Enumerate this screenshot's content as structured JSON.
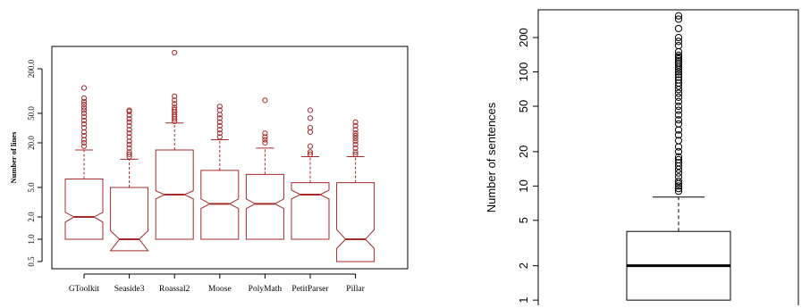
{
  "chart_data": [
    {
      "type": "box",
      "title": "",
      "xlabel": "",
      "ylabel": "Number of lines",
      "yscale": "log",
      "ylim": [
        0.4,
        400
      ],
      "yticks": [
        0.5,
        1.0,
        2.0,
        5.0,
        20.0,
        50.0,
        200.0
      ],
      "ytick_labels": [
        "0.5",
        "1.0",
        "2.0",
        "5.0",
        "20.0",
        "50.0",
        "200.0"
      ],
      "notched": true,
      "color": "#a52a2a",
      "categories": [
        "GToolkit",
        "Seaside3",
        "Roassal2",
        "Moose",
        "PolyMath",
        "PetitParser",
        "Pillar"
      ],
      "series": [
        {
          "category": "GToolkit",
          "min": 1,
          "q1": 1,
          "median": 2,
          "q3": 6.5,
          "whisker_high": 16,
          "notch": [
            1.7,
            2.3
          ],
          "outliers": [
            18,
            20,
            22,
            25,
            28,
            32,
            36,
            40,
            45,
            50,
            55,
            60,
            66,
            72,
            80,
            110
          ]
        },
        {
          "category": "Seaside3",
          "min": 0.7,
          "q1": 0.7,
          "median": 1,
          "q3": 5,
          "whisker_high": 12,
          "notch": [
            0.7,
            1.3
          ],
          "outliers": [
            13,
            14,
            15,
            17,
            19,
            21,
            24,
            27,
            30,
            34,
            38,
            42,
            47,
            53,
            55
          ]
        },
        {
          "category": "Roassal2",
          "min": 1,
          "q1": 1,
          "median": 4,
          "q3": 16,
          "whisker_high": 37,
          "notch": [
            3.5,
            4.5
          ],
          "outliers": [
            39,
            42,
            45,
            48,
            52,
            56,
            60,
            67,
            75,
            85,
            330
          ]
        },
        {
          "category": "Moose",
          "min": 1,
          "q1": 1,
          "median": 3,
          "q3": 8.5,
          "whisker_high": 22,
          "notch": [
            2.6,
            3.5
          ],
          "outliers": [
            24,
            27,
            30,
            34,
            38,
            43,
            48,
            55,
            62
          ]
        },
        {
          "category": "PolyMath",
          "min": 1,
          "q1": 1,
          "median": 3,
          "q3": 7.5,
          "whisker_high": 17,
          "notch": [
            2.6,
            3.5
          ],
          "outliers": [
            20,
            22,
            24,
            27,
            75
          ]
        },
        {
          "category": "PetitParser",
          "min": 1,
          "q1": 1,
          "median": 4,
          "q3": 5.8,
          "whisker_high": 13,
          "notch": [
            3.5,
            4.6
          ],
          "outliers": [
            14,
            15,
            18,
            28,
            32,
            43,
            55
          ]
        },
        {
          "category": "Pillar",
          "min": 0.5,
          "q1": 0.5,
          "median": 1,
          "q3": 5.8,
          "whisker_high": 13,
          "notch": [
            0.75,
            1.35
          ],
          "outliers": [
            14,
            15,
            17,
            19,
            21,
            23,
            25,
            27,
            30,
            34,
            38
          ]
        }
      ]
    },
    {
      "type": "box",
      "title": "",
      "xlabel": "",
      "ylabel": "Number of sentences",
      "yscale": "log",
      "ylim": [
        0.9,
        350
      ],
      "yticks": [
        1,
        2,
        5,
        10,
        20,
        50,
        100,
        200
      ],
      "ytick_labels": [
        "1",
        "2",
        "5",
        "10",
        "20",
        "50",
        "100",
        "200"
      ],
      "notched": false,
      "color": "#000000",
      "series": [
        {
          "min": 1,
          "q1": 1,
          "median": 2,
          "q3": 4,
          "whisker_high": 8,
          "outliers": [
            9,
            9.5,
            10,
            10.5,
            11,
            12,
            13,
            14,
            15,
            16,
            17,
            18,
            20,
            22,
            25,
            28,
            31,
            35,
            38,
            42,
            46,
            50,
            55,
            60,
            65,
            70,
            75,
            80,
            85,
            90,
            95,
            100,
            105,
            110,
            115,
            120,
            125,
            130,
            135,
            140,
            150,
            170,
            185,
            200,
            240,
            290,
            310
          ]
        }
      ]
    }
  ]
}
